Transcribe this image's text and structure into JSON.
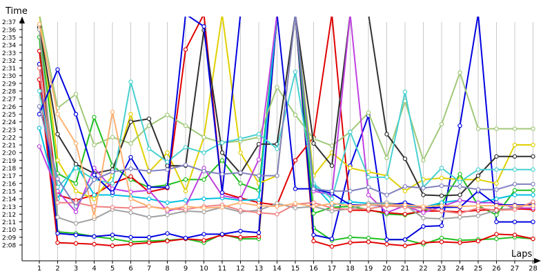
{
  "chart_data": {
    "type": "line",
    "title": "",
    "xlabel": "Laps",
    "ylabel": "Time",
    "x_ticks": [
      1,
      2,
      3,
      4,
      5,
      6,
      7,
      8,
      9,
      10,
      11,
      12,
      13,
      14,
      15,
      16,
      17,
      18,
      19,
      20,
      21,
      22,
      23,
      24,
      25,
      26,
      27,
      28
    ],
    "y_ticks": [
      128,
      129,
      130,
      131,
      132,
      133,
      134,
      135,
      136,
      137,
      138,
      139,
      140,
      141,
      142,
      143,
      144,
      145,
      146,
      147,
      148,
      149,
      150,
      151,
      152,
      153,
      154,
      155,
      156,
      157
    ],
    "y_tick_labels": [
      "2:08",
      "2:09",
      "2:10",
      "2:11",
      "2:12",
      "2:13",
      "2:14",
      "2:15",
      "2:16",
      "2:17",
      "2:18",
      "2:19",
      "2:20",
      "2:21",
      "2:22",
      "2:23",
      "2:24",
      "2:25",
      "2:26",
      "2:27",
      "2:28",
      "2:29",
      "2:30",
      "2:31",
      "2:32",
      "2:33",
      "2:34",
      "2:35",
      "2:36",
      "2:37"
    ],
    "xlim": [
      0.5,
      28.1
    ],
    "ylim": [
      127.2,
      157.8
    ],
    "grid": "vertical",
    "legend": "none",
    "series": [
      {
        "color": "#1fbf1f",
        "values": [
          155.0,
          129.7,
          129.5,
          129.1,
          128.8,
          128.4,
          128.5,
          128.6,
          128.8,
          128.3,
          129.4,
          128.8,
          128.8,
          158.0,
          158.0,
          130.2,
          128.6,
          129.0,
          128.9,
          128.7,
          128.7,
          128.1,
          128.9,
          128.6,
          128.7,
          128.8,
          129.0,
          128.8
        ]
      },
      {
        "color": "#e00000",
        "values": [
          149.5,
          128.3,
          128.2,
          128.1,
          127.9,
          128.1,
          128.3,
          128.5,
          128.8,
          128.6,
          129.3,
          129.0,
          129.1,
          158.0,
          158.0,
          128.5,
          127.8,
          128.3,
          128.4,
          128.1,
          127.9,
          128.3,
          128.4,
          128.3,
          128.5,
          129.4,
          129.3,
          128.8
        ]
      },
      {
        "color": "#0000e0",
        "values": [
          151.5,
          129.5,
          129.3,
          129.1,
          129.3,
          129.0,
          129.0,
          129.5,
          128.9,
          129.4,
          129.4,
          129.8,
          129.6,
          158.0,
          158.0,
          129.3,
          128.8,
          138.3,
          144.8,
          128.7,
          128.7,
          130.4,
          130.5,
          143.5,
          158.0,
          131.0,
          131.0,
          131.0
        ]
      },
      {
        "color": "#1fbf1f",
        "values": [
          156.2,
          137.3,
          136.0,
          144.6,
          138.3,
          136.5,
          135.5,
          135.8,
          136.5,
          136.5,
          139.0,
          136.0,
          135.1,
          158.0,
          158.0,
          132.1,
          132.9,
          133.0,
          132.6,
          132.0,
          131.9,
          132.4,
          133.4,
          137.2,
          133.1,
          131.9,
          135.1,
          135.1
        ]
      },
      {
        "color": "#e00000",
        "values": [
          153.2,
          134.5,
          133.8,
          134.5,
          136.0,
          136.9,
          134.9,
          135.4,
          153.4,
          158.0,
          134.8,
          134.1,
          133.5,
          133.2,
          139.0,
          142.0,
          158.0,
          132.5,
          132.5,
          132.2,
          132.0,
          132.4,
          132.4,
          132.3,
          132.5,
          132.6,
          132.7,
          132.6
        ]
      },
      {
        "color": "#e0d000",
        "values": [
          158.0,
          139.0,
          135.0,
          134.0,
          137.0,
          145.0,
          137.5,
          140.0,
          135.0,
          142.0,
          158.0,
          140.0,
          136.0,
          137.0,
          158.0,
          137.0,
          140.0,
          138.0,
          137.5,
          137.0,
          135.0,
          136.5,
          136.7,
          136.5,
          136.5,
          136.0,
          141.0,
          141.0
        ]
      },
      {
        "color": "#00c0e0",
        "values": [
          143.2,
          134.0,
          138.5,
          134.5,
          134.5,
          134.3,
          134.0,
          133.5,
          133.8,
          134.0,
          134.1,
          133.8,
          133.9,
          158.0,
          158.0,
          135.8,
          133.2,
          133.6,
          133.4,
          133.4,
          133.0,
          132.9,
          133.5,
          133.8,
          133.5,
          134.0,
          134.5,
          134.5
        ]
      },
      {
        "color": "#a0c878",
        "values": [
          158.0,
          145.8,
          147.6,
          141.0,
          142.0,
          141.2,
          143.5,
          144.9,
          143.5,
          142.0,
          141.3,
          141.5,
          142.0,
          148.5,
          144.9,
          141.8,
          140.9,
          142.7,
          145.2,
          139.3,
          146.7,
          139.0,
          143.7,
          150.4,
          143.1,
          143.1,
          143.1,
          143.1
        ]
      },
      {
        "color": "#303030",
        "values": [
          156.3,
          142.4,
          138.5,
          137.3,
          137.8,
          144.0,
          144.4,
          138.3,
          138.3,
          155.9,
          140.0,
          137.3,
          141.1,
          141.1,
          158.0,
          141.2,
          138.3,
          158.0,
          158.0,
          142.4,
          139.2,
          134.5,
          134.4,
          134.5,
          137.0,
          139.5,
          139.5,
          139.5
        ]
      },
      {
        "color": "#c040e0",
        "values": [
          140.8,
          135.0,
          132.3,
          138.0,
          135.3,
          134.9,
          135.1,
          132.4,
          133.0,
          138.0,
          134.4,
          134.0,
          139.1,
          158.0,
          158.0,
          135.0,
          134.5,
          158.0,
          134.5,
          132.2,
          133.1,
          132.2,
          133.0,
          133.8,
          133.5,
          133.5,
          132.8,
          132.8
        ]
      },
      {
        "color": "#48d0d0",
        "values": [
          148.0,
          135.5,
          138.0,
          136.5,
          136.0,
          149.2,
          140.5,
          138.8,
          140.7,
          140.0,
          141.3,
          141.8,
          142.4,
          140.5,
          150.5,
          136.0,
          134.0,
          142.7,
          136.8,
          136.8,
          147.9,
          135.5,
          138.0,
          136.2,
          137.8,
          137.8,
          137.8,
          137.8
        ]
      },
      {
        "color": "#a0a0a0",
        "values": [
          156.0,
          131.6,
          130.8,
          131.4,
          132.6,
          132.2,
          131.6,
          131.9,
          132.4,
          132.3,
          132.9,
          132.3,
          132.5,
          133.4,
          132.8,
          133.0,
          132.4,
          132.7,
          133.4,
          133.5,
          133.2,
          131.5,
          131.4,
          131.6,
          131.8,
          132.5,
          132.8,
          133.4
        ]
      },
      {
        "color": "#0000e0",
        "values": [
          145.0,
          150.8,
          145.0,
          137.1,
          134.8,
          139.4,
          135.5,
          135.5,
          158.0,
          156.4,
          134.8,
          158.0,
          158.0,
          158.0,
          135.3,
          135.3,
          134.7,
          133.2,
          133.2,
          133.1,
          133.5,
          132.8,
          132.9,
          132.9,
          135.0,
          133.2,
          133.2,
          133.2
        ]
      },
      {
        "color": "#f08080",
        "values": [
          151.0,
          133.5,
          133.5,
          133.0,
          132.9,
          132.8,
          133.0,
          132.7,
          132.6,
          133.0,
          133.2,
          132.5,
          132.2,
          132.0,
          133.3,
          133.5,
          132.8,
          132.6,
          132.7,
          133.1,
          132.9,
          132.8,
          132.4,
          132.1,
          132.8,
          132.5,
          132.6,
          133.6
        ]
      },
      {
        "color": "#ffb070",
        "values": [
          156.7,
          145.0,
          141.2,
          131.7,
          145.3,
          134.0,
          133.0,
          132.6,
          133.0,
          132.8,
          132.9,
          133.5,
          133.1,
          133.0,
          133.4,
          133.0,
          133.4,
          133.1,
          133.2,
          133.2,
          133.2,
          133.0,
          133.1,
          133.0,
          133.1,
          133.1,
          133.1,
          133.1
        ]
      },
      {
        "color": "#8080c0",
        "values": [
          146.0,
          136.6,
          133.0,
          136.5,
          137.5,
          137.9,
          137.6,
          137.8,
          138.4,
          137.6,
          137.2,
          137.4,
          137.0,
          137.0,
          158.0,
          135.3,
          135.0,
          135.0,
          135.5,
          134.5,
          135.6,
          135.4,
          135.7,
          135.6,
          135.2,
          135.2,
          135.9,
          135.9
        ]
      }
    ]
  }
}
